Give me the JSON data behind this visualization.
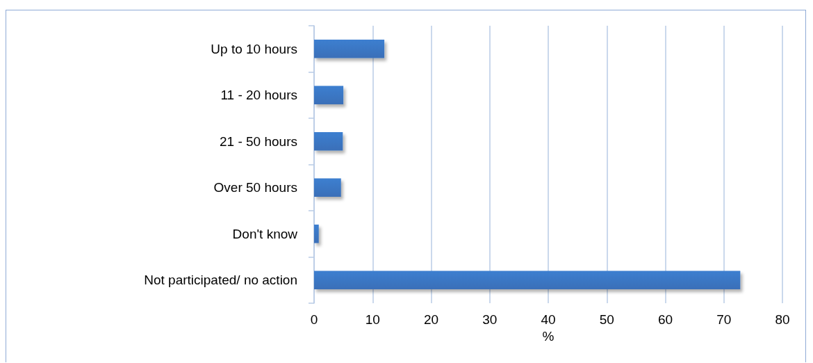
{
  "chart_data": {
    "type": "bar",
    "orientation": "horizontal",
    "xlabel": "%",
    "categories": [
      "Up to 10 hours",
      "11 - 20 hours",
      "21 - 50 hours",
      "Over 50 hours",
      "Don't know",
      "Not participated/ no action"
    ],
    "values": [
      12.0,
      5.0,
      4.9,
      4.6,
      0.8,
      72.8
    ],
    "color": "#3a6fb8",
    "xlim": [
      0,
      80
    ],
    "xticks": [
      0,
      10,
      20,
      30,
      40,
      50,
      60,
      70,
      80
    ],
    "grid": "x"
  }
}
